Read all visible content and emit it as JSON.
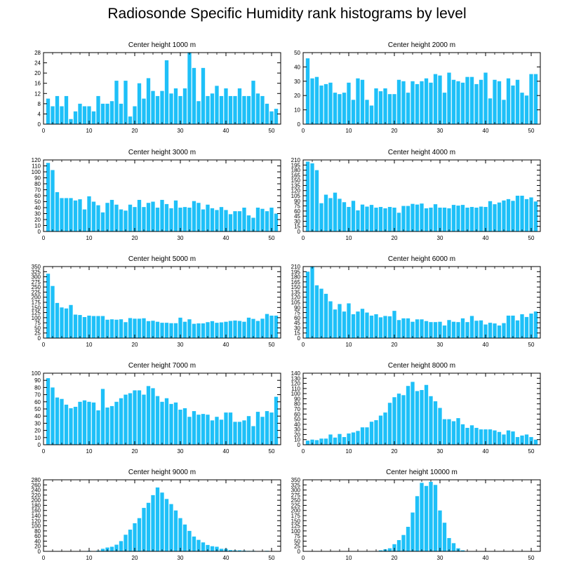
{
  "figure_title": "Radiosonde Specific Humidity rank histograms by level",
  "colors": {
    "bar": "#1ec0f8",
    "axis": "#000000"
  },
  "chart_data": [
    {
      "type": "bar",
      "title": "Center height 1000 m",
      "xlim": [
        0,
        52
      ],
      "xticks": [
        0,
        10,
        20,
        30,
        40,
        50
      ],
      "ylim": [
        0,
        28
      ],
      "yticks": [
        0,
        4,
        8,
        12,
        16,
        20,
        24,
        28
      ],
      "categories": [
        1,
        2,
        3,
        4,
        5,
        6,
        7,
        8,
        9,
        10,
        11,
        12,
        13,
        14,
        15,
        16,
        17,
        18,
        19,
        20,
        21,
        22,
        23,
        24,
        25,
        26,
        27,
        28,
        29,
        30,
        31,
        32,
        33,
        34,
        35,
        36,
        37,
        38,
        39,
        40,
        41,
        42,
        43,
        44,
        45,
        46,
        47,
        48,
        49,
        50,
        51
      ],
      "values": [
        10,
        7,
        11,
        7,
        11,
        2,
        5,
        8,
        7,
        7,
        5,
        11,
        8,
        8,
        9,
        17,
        8,
        17,
        3,
        7,
        16,
        10,
        18,
        13,
        11,
        13,
        25,
        12,
        14,
        11,
        14,
        28,
        22,
        9,
        22,
        11,
        12,
        15,
        11,
        14,
        11,
        11,
        14,
        11,
        11,
        17,
        12,
        11,
        8,
        5,
        6
      ]
    },
    {
      "type": "bar",
      "title": "Center height 2000 m",
      "xlim": [
        0,
        52
      ],
      "xticks": [
        0,
        10,
        20,
        30,
        40,
        50
      ],
      "ylim": [
        0,
        50
      ],
      "yticks": [
        0,
        10,
        20,
        30,
        40,
        50
      ],
      "categories": [
        1,
        2,
        3,
        4,
        5,
        6,
        7,
        8,
        9,
        10,
        11,
        12,
        13,
        14,
        15,
        16,
        17,
        18,
        19,
        20,
        21,
        22,
        23,
        24,
        25,
        26,
        27,
        28,
        29,
        30,
        31,
        32,
        33,
        34,
        35,
        36,
        37,
        38,
        39,
        40,
        41,
        42,
        43,
        44,
        45,
        46,
        47,
        48,
        49,
        50,
        51
      ],
      "values": [
        46,
        32,
        33,
        27,
        28,
        29,
        22,
        21,
        22,
        29,
        17,
        32,
        31,
        17,
        13,
        25,
        23,
        25,
        21,
        21,
        31,
        30,
        22,
        30,
        28,
        30,
        32,
        29,
        35,
        34,
        22,
        36,
        31,
        30,
        29,
        33,
        33,
        28,
        31,
        36,
        18,
        31,
        30,
        17,
        32,
        27,
        31,
        22,
        20,
        35,
        35
      ]
    },
    {
      "type": "bar",
      "title": "Center height 3000 m",
      "xlim": [
        0,
        52
      ],
      "xticks": [
        0,
        10,
        20,
        30,
        40,
        50
      ],
      "ylim": [
        0,
        120
      ],
      "yticks": [
        0,
        10,
        20,
        30,
        40,
        50,
        60,
        70,
        80,
        90,
        100,
        110,
        120
      ],
      "categories": [
        1,
        2,
        3,
        4,
        5,
        6,
        7,
        8,
        9,
        10,
        11,
        12,
        13,
        14,
        15,
        16,
        17,
        18,
        19,
        20,
        21,
        22,
        23,
        24,
        25,
        26,
        27,
        28,
        29,
        30,
        31,
        32,
        33,
        34,
        35,
        36,
        37,
        38,
        39,
        40,
        41,
        42,
        43,
        44,
        45,
        46,
        47,
        48,
        49,
        50,
        51
      ],
      "values": [
        115,
        103,
        66,
        56,
        56,
        56,
        52,
        54,
        37,
        59,
        50,
        44,
        32,
        48,
        53,
        45,
        37,
        35,
        45,
        41,
        53,
        41,
        48,
        50,
        40,
        53,
        46,
        39,
        52,
        40,
        41,
        40,
        51,
        48,
        37,
        45,
        39,
        36,
        41,
        36,
        29,
        34,
        34,
        40,
        27,
        23,
        40,
        38,
        34,
        40,
        30
      ]
    },
    {
      "type": "bar",
      "title": "Center height 4000 m",
      "xlim": [
        0,
        52
      ],
      "xticks": [
        0,
        10,
        20,
        30,
        40,
        50
      ],
      "ylim": [
        0,
        210
      ],
      "yticks": [
        0,
        15,
        30,
        45,
        60,
        75,
        90,
        105,
        120,
        135,
        150,
        165,
        180,
        195,
        210
      ],
      "categories": [
        1,
        2,
        3,
        4,
        5,
        6,
        7,
        8,
        9,
        10,
        11,
        12,
        13,
        14,
        15,
        16,
        17,
        18,
        19,
        20,
        21,
        22,
        23,
        24,
        25,
        26,
        27,
        28,
        29,
        30,
        31,
        32,
        33,
        34,
        35,
        36,
        37,
        38,
        39,
        40,
        41,
        42,
        43,
        44,
        45,
        46,
        47,
        48,
        49,
        50,
        51
      ],
      "values": [
        205,
        200,
        180,
        83,
        108,
        98,
        114,
        96,
        86,
        72,
        90,
        62,
        79,
        73,
        78,
        70,
        72,
        68,
        72,
        70,
        55,
        75,
        75,
        81,
        79,
        82,
        68,
        70,
        80,
        70,
        70,
        68,
        78,
        76,
        78,
        70,
        72,
        70,
        73,
        72,
        89,
        80,
        85,
        91,
        95,
        90,
        105,
        105,
        95,
        100,
        88
      ]
    },
    {
      "type": "bar",
      "title": "Center height 5000 m",
      "xlim": [
        0,
        52
      ],
      "xticks": [
        0,
        10,
        20,
        30,
        40,
        50
      ],
      "ylim": [
        0,
        350
      ],
      "yticks": [
        0,
        25,
        50,
        75,
        100,
        125,
        150,
        175,
        200,
        225,
        250,
        275,
        300,
        325,
        350
      ],
      "categories": [
        1,
        2,
        3,
        4,
        5,
        6,
        7,
        8,
        9,
        10,
        11,
        12,
        13,
        14,
        15,
        16,
        17,
        18,
        19,
        20,
        21,
        22,
        23,
        24,
        25,
        26,
        27,
        28,
        29,
        30,
        31,
        32,
        33,
        34,
        35,
        36,
        37,
        38,
        39,
        40,
        41,
        42,
        43,
        44,
        45,
        46,
        47,
        48,
        49,
        50,
        51
      ],
      "values": [
        315,
        255,
        172,
        150,
        145,
        162,
        115,
        113,
        103,
        110,
        108,
        108,
        108,
        90,
        92,
        90,
        92,
        78,
        98,
        95,
        95,
        97,
        83,
        85,
        80,
        75,
        75,
        73,
        73,
        100,
        80,
        92,
        70,
        72,
        72,
        78,
        83,
        75,
        77,
        80,
        84,
        86,
        84,
        80,
        100,
        94,
        84,
        95,
        118,
        110,
        110
      ]
    },
    {
      "type": "bar",
      "title": "Center height 6000 m",
      "xlim": [
        0,
        52
      ],
      "xticks": [
        0,
        10,
        20,
        30,
        40,
        50
      ],
      "ylim": [
        0,
        210
      ],
      "yticks": [
        0,
        15,
        30,
        45,
        60,
        75,
        90,
        105,
        120,
        135,
        150,
        165,
        180,
        195,
        210
      ],
      "categories": [
        1,
        2,
        3,
        4,
        5,
        6,
        7,
        8,
        9,
        10,
        11,
        12,
        13,
        14,
        15,
        16,
        17,
        18,
        19,
        20,
        21,
        22,
        23,
        24,
        25,
        26,
        27,
        28,
        29,
        30,
        31,
        32,
        33,
        34,
        35,
        36,
        37,
        38,
        39,
        40,
        41,
        42,
        43,
        44,
        45,
        46,
        47,
        48,
        49,
        50,
        51
      ],
      "values": [
        195,
        210,
        155,
        145,
        130,
        108,
        84,
        100,
        78,
        102,
        70,
        78,
        86,
        75,
        66,
        70,
        61,
        65,
        64,
        80,
        53,
        58,
        58,
        48,
        55,
        55,
        50,
        47,
        47,
        48,
        37,
        53,
        48,
        47,
        58,
        47,
        65,
        51,
        52,
        40,
        45,
        43,
        37,
        44,
        66,
        66,
        52,
        70,
        62,
        72,
        78
      ]
    },
    {
      "type": "bar",
      "title": "Center height 7000 m",
      "xlim": [
        0,
        52
      ],
      "xticks": [
        0,
        10,
        20,
        30,
        40,
        50
      ],
      "ylim": [
        0,
        100
      ],
      "yticks": [
        0,
        10,
        20,
        30,
        40,
        50,
        60,
        70,
        80,
        90,
        100
      ],
      "categories": [
        1,
        2,
        3,
        4,
        5,
        6,
        7,
        8,
        9,
        10,
        11,
        12,
        13,
        14,
        15,
        16,
        17,
        18,
        19,
        20,
        21,
        22,
        23,
        24,
        25,
        26,
        27,
        28,
        29,
        30,
        31,
        32,
        33,
        34,
        35,
        36,
        37,
        38,
        39,
        40,
        41,
        42,
        43,
        44,
        45,
        46,
        47,
        48,
        49,
        50,
        51
      ],
      "values": [
        93,
        80,
        66,
        64,
        56,
        51,
        53,
        60,
        62,
        60,
        59,
        48,
        78,
        52,
        54,
        60,
        65,
        70,
        72,
        76,
        76,
        70,
        82,
        79,
        68,
        60,
        65,
        57,
        59,
        49,
        51,
        39,
        47,
        42,
        43,
        42,
        34,
        39,
        35,
        45,
        45,
        32,
        32,
        34,
        40,
        26,
        46,
        39,
        47,
        45,
        67
      ]
    },
    {
      "type": "bar",
      "title": "Center height 8000 m",
      "xlim": [
        0,
        52
      ],
      "xticks": [
        0,
        10,
        20,
        30,
        40,
        50
      ],
      "ylim": [
        0,
        140
      ],
      "yticks": [
        0,
        10,
        20,
        30,
        40,
        50,
        60,
        70,
        80,
        90,
        100,
        110,
        120,
        130,
        140
      ],
      "categories": [
        1,
        2,
        3,
        4,
        5,
        6,
        7,
        8,
        9,
        10,
        11,
        12,
        13,
        14,
        15,
        16,
        17,
        18,
        19,
        20,
        21,
        22,
        23,
        24,
        25,
        26,
        27,
        28,
        29,
        30,
        31,
        32,
        33,
        34,
        35,
        36,
        37,
        38,
        39,
        40,
        41,
        42,
        43,
        44,
        45,
        46,
        47,
        48,
        49,
        50,
        51
      ],
      "values": [
        8,
        10,
        9,
        12,
        12,
        20,
        14,
        21,
        15,
        22,
        24,
        27,
        34,
        34,
        45,
        48,
        57,
        63,
        82,
        93,
        100,
        97,
        115,
        123,
        105,
        107,
        117,
        95,
        85,
        72,
        50,
        50,
        46,
        52,
        40,
        33,
        38,
        33,
        30,
        30,
        30,
        28,
        25,
        20,
        28,
        26,
        15,
        18,
        20,
        15,
        10
      ]
    },
    {
      "type": "bar",
      "title": "Center height 9000 m",
      "xlim": [
        0,
        52
      ],
      "xticks": [
        0,
        10,
        20,
        30,
        40,
        50
      ],
      "ylim": [
        0,
        280
      ],
      "yticks": [
        0,
        20,
        40,
        60,
        80,
        100,
        120,
        140,
        160,
        180,
        200,
        220,
        240,
        260,
        280
      ],
      "categories": [
        1,
        2,
        3,
        4,
        5,
        6,
        7,
        8,
        9,
        10,
        11,
        12,
        13,
        14,
        15,
        16,
        17,
        18,
        19,
        20,
        21,
        22,
        23,
        24,
        25,
        26,
        27,
        28,
        29,
        30,
        31,
        32,
        33,
        34,
        35,
        36,
        37,
        38,
        39,
        40,
        41,
        42,
        43,
        44,
        45,
        46,
        47,
        48,
        49,
        50,
        51
      ],
      "values": [
        0,
        0,
        0,
        0,
        0,
        0,
        0,
        0,
        1,
        2,
        1,
        3,
        10,
        15,
        18,
        26,
        40,
        65,
        85,
        110,
        130,
        170,
        190,
        220,
        250,
        230,
        205,
        185,
        160,
        130,
        105,
        80,
        58,
        45,
        35,
        25,
        20,
        18,
        10,
        10,
        5,
        4,
        4,
        3,
        2,
        2,
        1,
        1,
        2,
        1,
        0
      ]
    },
    {
      "type": "bar",
      "title": "Center height 10000 m",
      "xlim": [
        0,
        52
      ],
      "xticks": [
        0,
        10,
        20,
        30,
        40,
        50
      ],
      "ylim": [
        0,
        350
      ],
      "yticks": [
        0,
        25,
        50,
        75,
        100,
        125,
        150,
        175,
        200,
        225,
        250,
        275,
        300,
        325,
        350
      ],
      "categories": [
        1,
        2,
        3,
        4,
        5,
        6,
        7,
        8,
        9,
        10,
        11,
        12,
        13,
        14,
        15,
        16,
        17,
        18,
        19,
        20,
        21,
        22,
        23,
        24,
        25,
        26,
        27,
        28,
        29,
        30,
        31,
        32,
        33,
        34,
        35,
        36,
        37,
        38,
        39,
        40,
        41,
        42,
        43,
        44,
        45,
        46,
        47,
        48,
        49,
        50,
        51
      ],
      "values": [
        0,
        0,
        0,
        0,
        0,
        0,
        0,
        0,
        0,
        0,
        0,
        0,
        0,
        0,
        0,
        0,
        5,
        10,
        15,
        35,
        55,
        80,
        120,
        190,
        270,
        335,
        320,
        340,
        325,
        200,
        140,
        65,
        40,
        15,
        5,
        0,
        0,
        0,
        0,
        0,
        0,
        0,
        0,
        0,
        0,
        0,
        0,
        0,
        0,
        0,
        0
      ]
    }
  ]
}
